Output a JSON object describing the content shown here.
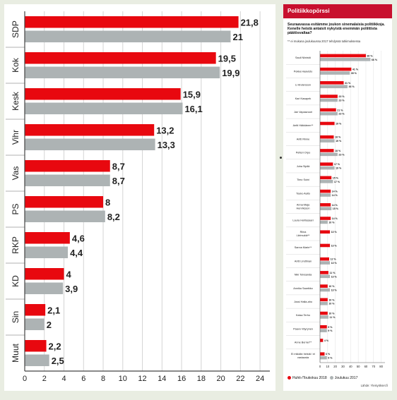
{
  "chart_data": [
    {
      "type": "bar",
      "categories": [
        "SDP",
        "Kok",
        "Kesk",
        "Vihr",
        "Vas",
        "PS",
        "RKP",
        "KD",
        "Sin",
        "Muut"
      ],
      "series": [
        {
          "values": [
            21.8,
            19.5,
            15.9,
            13.2,
            8.7,
            8,
            4.6,
            4,
            2.1,
            2.2
          ]
        },
        {
          "values": [
            21,
            19.9,
            16.1,
            13.3,
            8.7,
            8.2,
            4.4,
            3.9,
            2,
            2.5
          ]
        }
      ],
      "value_labels": [
        [
          "21,8",
          "19,5",
          "15,9",
          "13,2",
          "8,7",
          "8",
          "4,6",
          "4",
          "2,1",
          "2,2"
        ],
        [
          "21",
          "19,9",
          "16,1",
          "13,3",
          "8,7",
          "8,2",
          "4,4",
          "3,9",
          "2",
          "2,5"
        ]
      ],
      "x_ticks": [
        0,
        2,
        4,
        6,
        8,
        10,
        12,
        14,
        16,
        18,
        20,
        22,
        24
      ],
      "xlim": [
        0,
        25
      ],
      "orientation": "horizontal",
      "grid": "vertical gridlines",
      "colors": [
        "#e8080f",
        "#adb3b4"
      ]
    },
    {
      "type": "bar",
      "title": "Politiikkopörssi",
      "subtitle": "Seuraavassa esitämme joukon sinemalaisia politiikkoja. Kenelle heistä antaisit nykyistä enemmän poliittista päätösvaltaa?",
      "note": "** ei mukana joulukuussa 2017 tehdyssä tutkimuksessa",
      "categories": [
        "Sauli Niinistö",
        "Pekka Haavisto",
        "Li Andersson",
        "Kari Kasapek",
        "Jan Vapaavuori",
        "Antti Häkkänen**",
        "Antti Rinne",
        "Petteri Orpo",
        "Juha Sipilä",
        "Timo Soini",
        "Touko Aalto",
        "Anna-Maja Henriksson",
        "Laura Huhtasaari",
        "Riina Liirimukki**",
        "Sanna Marin**",
        "Antti Lindtman",
        "Niki Tolvsanda",
        "Annika Saarikko",
        "Jussi Halla-aho",
        "Kaisa Terho",
        "Paavo Väyrynen",
        "Anne Berner**",
        "Ei mikään heistä / ei vastausta"
      ],
      "series": [
        {
          "name": "Huhti-/Toukokuu 2018",
          "values": [
            60,
            41,
            31,
            23,
            21,
            19,
            18,
            18,
            17,
            15,
            14,
            14,
            14,
            13,
            13,
            12,
            11,
            10,
            10,
            10,
            9,
            4,
            6
          ]
        },
        {
          "name": "Joulukuu 2017",
          "values": [
            66,
            39,
            36,
            23,
            23,
            null,
            19,
            23,
            19,
            17,
            14,
            15,
            10,
            null,
            null,
            13,
            13,
            13,
            10,
            11,
            9,
            null,
            9
          ]
        }
      ],
      "value_labels": [
        [
          "60 %",
          "41 %",
          "31 %",
          "23 %",
          "21 %",
          "19 %",
          "18 %",
          "18 %",
          "17 %",
          "15 %",
          "14 %",
          "14 %",
          "14 %",
          "13 %",
          "13 %",
          "12 %",
          "11 %",
          "10 %",
          "10 %",
          "10 %",
          "9 %",
          "4 %",
          "6 %"
        ],
        [
          "66 %",
          "39 %",
          "36 %",
          "23 %",
          "23 %",
          "",
          "19 %",
          "23 %",
          "19 %",
          "17 %",
          "14 %",
          "15 %",
          "10 %",
          "",
          "",
          "13 %",
          "13 %",
          "13 %",
          "10 %",
          "11 %",
          "9 %",
          "",
          "9 %"
        ]
      ],
      "x_ticks": [
        0,
        10,
        20,
        30,
        40,
        50,
        60,
        70,
        80
      ],
      "xlim": [
        0,
        85
      ],
      "legend": "bottom",
      "source": "Lähde: Yleisyökset.fi",
      "colors": [
        "#e8080f",
        "#adb3b4"
      ]
    }
  ],
  "right_panel": {
    "header": "Politiikkopörssi",
    "question": "Seuraavassa esitämme joukon sinemalaisia politiikkoja. Kenelle heistä antaisit nykyistä enemmän poliittista päätösvaltaa?",
    "note": "** ei mukana joulukuussa 2017 tehdyssä tutkimuksessa",
    "legend_a": "Huhti-/Toukokuu 2018",
    "legend_b": "Joulukuu 2017",
    "source": "Lähde: Yleisyökset.fi"
  }
}
